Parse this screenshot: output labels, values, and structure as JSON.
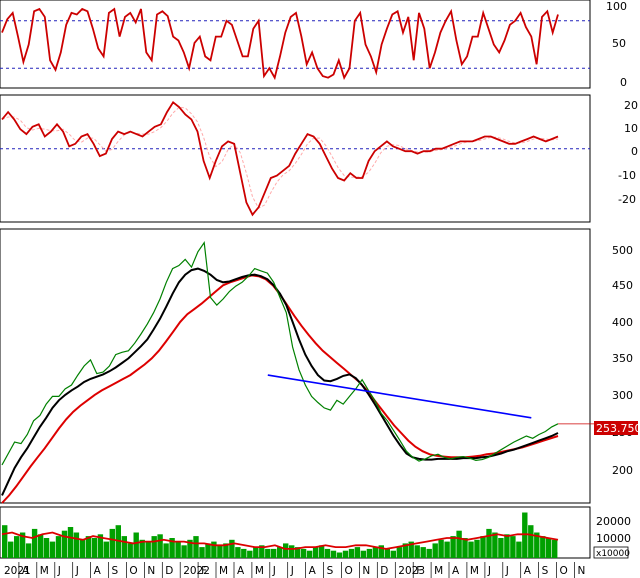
{
  "chart_data": [
    {
      "id": "stochastic",
      "type": "line",
      "title": "",
      "ylim": [
        0,
        100
      ],
      "y_ticks": [
        "100",
        "50",
        "0"
      ],
      "ref_lines": [
        80,
        20
      ],
      "series": [
        {
          "color": "#cc0000",
          "values": [
            65,
            82,
            90,
            60,
            28,
            50,
            92,
            95,
            85,
            30,
            18,
            40,
            75,
            90,
            88,
            95,
            92,
            70,
            45,
            35,
            90,
            95,
            60,
            85,
            90,
            78,
            95,
            40,
            30,
            88,
            92,
            86,
            60,
            55,
            40,
            20,
            52,
            60,
            35,
            30,
            60,
            60,
            80,
            75,
            55,
            35,
            35,
            70,
            80,
            10,
            20,
            8,
            35,
            65,
            85,
            90,
            60,
            25,
            40,
            20,
            10,
            8,
            12,
            30,
            8,
            20,
            80,
            90,
            50,
            35,
            15,
            50,
            70,
            88,
            92,
            65,
            85,
            30,
            90,
            70,
            20,
            40,
            65,
            80,
            92,
            55,
            25,
            35,
            60,
            60,
            90,
            70,
            50,
            40,
            55,
            75,
            80,
            90,
            72,
            60,
            25,
            85,
            92,
            65,
            88
          ]
        }
      ]
    },
    {
      "id": "oscillator",
      "type": "line",
      "title": "",
      "ylim": [
        -30,
        22
      ],
      "y_ticks": [
        "20",
        "10",
        "0",
        "-10",
        "-20"
      ],
      "ref_lines": [
        0
      ],
      "series": [
        {
          "color": "#cc0000",
          "values": [
            12,
            15,
            12,
            8,
            6,
            9,
            10,
            5,
            7,
            10,
            7,
            1,
            2,
            5,
            6,
            2,
            -3,
            -2,
            4,
            7,
            6,
            7,
            6,
            5,
            7,
            9,
            10,
            15,
            19,
            17,
            14,
            12,
            7,
            -5,
            -12,
            -5,
            1,
            3,
            2,
            -10,
            -22,
            -27,
            -24,
            -18,
            -12,
            -11,
            -9,
            -7,
            -2,
            2,
            6,
            5,
            2,
            -3,
            -8,
            -12,
            -13,
            -10,
            -12,
            -12,
            -5,
            -1,
            1,
            3,
            1,
            0,
            -1,
            -1,
            -2,
            -1,
            -1,
            0,
            0,
            1,
            2,
            3,
            3,
            3,
            4,
            5,
            5,
            4,
            3,
            2,
            2,
            3,
            4,
            5,
            4,
            3,
            4,
            5
          ],
          "dashed_color": "#ffaaaa"
        }
      ]
    },
    {
      "id": "price",
      "type": "line",
      "title": "",
      "ylim": [
        150,
        510
      ],
      "y_ticks": [
        "500",
        "450",
        "400",
        "350",
        "300",
        "250",
        "200"
      ],
      "price_label": "253.750",
      "x_axis_labels": [
        "2021",
        "A",
        "M",
        "J",
        "J",
        "A",
        "S",
        "O",
        "N",
        "D",
        "2022",
        "F",
        "M",
        "A",
        "M",
        "J",
        "J",
        "A",
        "S",
        "O",
        "N",
        "D",
        "2023",
        "F",
        "M",
        "A",
        "M",
        "J",
        "J",
        "A",
        "S",
        "O",
        "N"
      ],
      "series": [
        {
          "name": "",
          "color": "#008000",
          "values": [
            200,
            215,
            230,
            228,
            240,
            258,
            265,
            280,
            290,
            290,
            300,
            305,
            318,
            330,
            338,
            320,
            322,
            330,
            345,
            348,
            350,
            360,
            372,
            385,
            400,
            418,
            440,
            458,
            462,
            470,
            460,
            480,
            492,
            420,
            410,
            418,
            428,
            435,
            440,
            448,
            458,
            455,
            452,
            440,
            420,
            400,
            355,
            325,
            305,
            290,
            282,
            275,
            272,
            285,
            280,
            290,
            300,
            312,
            298,
            285,
            268,
            258,
            245,
            232,
            218,
            210,
            205,
            208,
            212,
            214,
            210,
            208,
            210,
            211,
            209,
            206,
            207,
            210,
            215,
            220,
            225,
            230,
            234,
            238,
            235,
            240,
            244,
            250,
            254
          ]
        },
        {
          "name": "",
          "color": "#000000",
          "values": [
            160,
            178,
            196,
            210,
            222,
            236,
            250,
            262,
            275,
            285,
            292,
            298,
            303,
            309,
            313,
            316,
            319,
            323,
            328,
            334,
            340,
            348,
            356,
            365,
            378,
            392,
            408,
            425,
            440,
            450,
            456,
            458,
            455,
            450,
            443,
            440,
            441,
            444,
            447,
            449,
            450,
            448,
            444,
            436,
            425,
            410,
            388,
            365,
            345,
            330,
            318,
            311,
            310,
            313,
            317,
            319,
            314,
            305,
            293,
            280,
            266,
            252,
            238,
            226,
            215,
            210,
            208,
            207,
            207,
            208,
            208,
            208,
            208,
            209,
            209,
            209,
            210,
            211,
            213,
            215,
            218,
            220,
            223,
            226,
            229,
            232,
            235,
            238,
            242
          ]
        },
        {
          "name": "",
          "color": "#dd0000",
          "values": [
            150,
            160,
            172,
            185,
            198,
            210,
            222,
            235,
            248,
            260,
            270,
            278,
            285,
            292,
            298,
            303,
            308,
            313,
            318,
            325,
            332,
            340,
            350,
            362,
            375,
            388,
            398,
            405,
            412,
            420,
            428,
            436,
            440,
            443,
            446,
            449,
            448,
            444,
            436,
            424,
            410,
            396,
            383,
            371,
            360,
            350,
            342,
            334,
            326,
            318,
            310,
            300,
            288,
            276,
            264,
            252,
            242,
            232,
            224,
            218,
            214,
            212,
            211,
            210,
            210,
            210,
            211,
            212,
            214,
            215,
            217,
            219,
            221,
            223,
            226,
            229,
            232,
            235,
            238
          ]
        },
        {
          "name": "",
          "color": "#0000ff",
          "values": [
            [
              0.478,
              318
            ],
            [
              0.952,
              262
            ]
          ]
        }
      ]
    },
    {
      "id": "volume",
      "type": "bar",
      "title": "",
      "ylim": [
        0,
        28000
      ],
      "y_ticks": [
        "20000",
        "10000"
      ],
      "unit_label": "x10000",
      "series": [
        {
          "color": "#00a000",
          "values": [
            18000,
            9000,
            12000,
            14000,
            8000,
            16000,
            13000,
            11000,
            9000,
            12000,
            15000,
            17000,
            14000,
            10000,
            12000,
            11000,
            13000,
            9000,
            16000,
            18000,
            12000,
            8000,
            14000,
            10000,
            9000,
            12000,
            13000,
            8000,
            11000,
            9000,
            7000,
            10000,
            12000,
            6000,
            8000,
            9000,
            7000,
            8000,
            10000,
            6000,
            5000,
            4000,
            6000,
            7000,
            5000,
            5000,
            6000,
            8000,
            7000,
            6000,
            5000,
            4000,
            6000,
            7000,
            5000,
            4000,
            3000,
            4000,
            5000,
            6000,
            4000,
            5000,
            6000,
            7000,
            5000,
            4000,
            6000,
            8000,
            9000,
            7000,
            6000,
            5000,
            8000,
            10000,
            9000,
            12000,
            15000,
            11000,
            9000,
            10000,
            12000,
            16000,
            14000,
            11000,
            13000,
            12000,
            9000,
            25000,
            18000,
            14000,
            12000,
            11000,
            10000
          ]
        },
        {
          "color": "#dd0000",
          "values": [
            13000,
            14000,
            12000,
            11000,
            13000,
            14000,
            12000,
            11000,
            10000,
            12000,
            11000,
            10000,
            9000,
            8000,
            9000,
            9000,
            10000,
            9000,
            9000,
            8000,
            8000,
            7000,
            7000,
            8000,
            7000,
            6000,
            6000,
            7000,
            5000,
            5000,
            6000,
            6000,
            7000,
            6000,
            6000,
            7000,
            7000,
            6000,
            5000,
            6000,
            7000,
            8000,
            9000,
            10000,
            11000,
            11000,
            10000,
            11000,
            12000,
            13000,
            12000,
            13000,
            13000,
            12000,
            11000,
            10000
          ]
        }
      ]
    }
  ]
}
